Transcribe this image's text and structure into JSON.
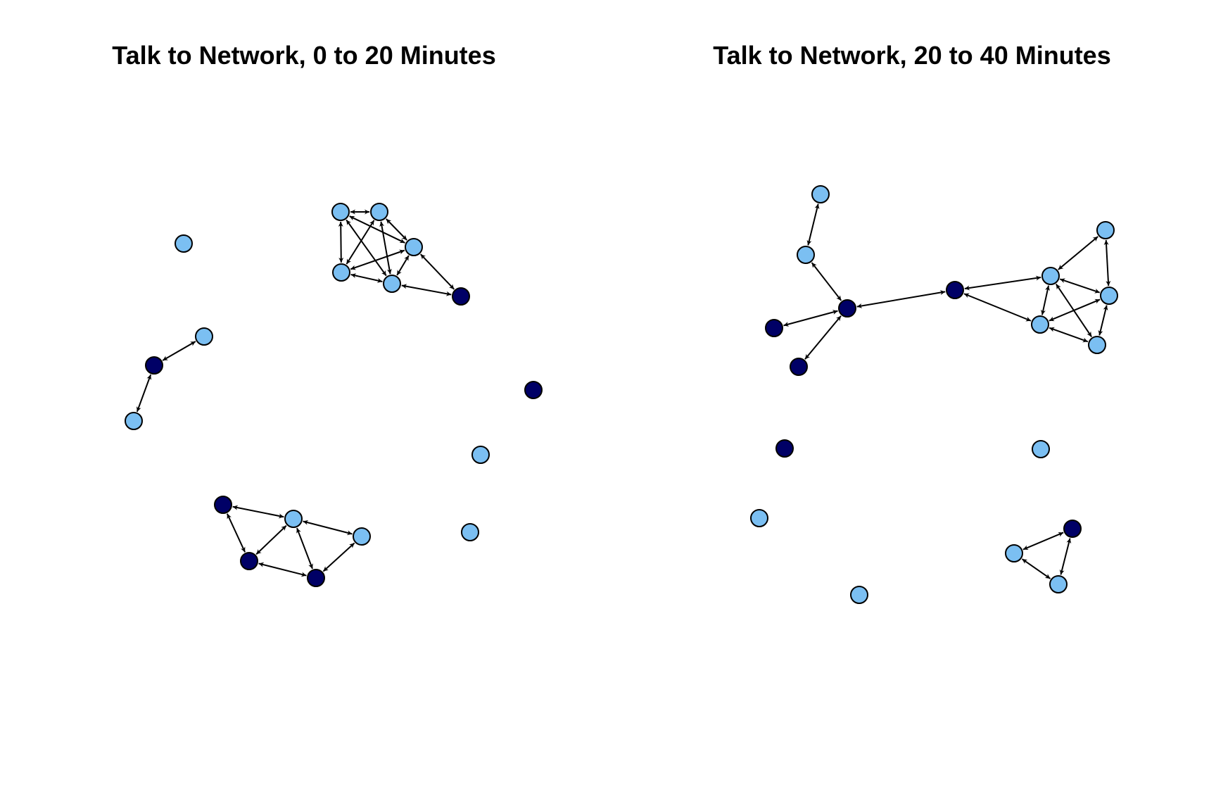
{
  "colors": {
    "light_node": "#7bbff2",
    "dark_node": "#000066",
    "edge": "#000000",
    "node_stroke": "#000000",
    "background": "#ffffff"
  },
  "panels": [
    {
      "title": "Talk to Network, 0 to 20 Minutes",
      "nodes": [
        {
          "id": "a1",
          "group": "light"
        },
        {
          "id": "a2",
          "group": "light"
        },
        {
          "id": "a3",
          "group": "light"
        },
        {
          "id": "a4",
          "group": "light"
        },
        {
          "id": "a5",
          "group": "light"
        },
        {
          "id": "a6",
          "group": "dark"
        },
        {
          "id": "b1",
          "group": "light"
        },
        {
          "id": "c1",
          "group": "light"
        },
        {
          "id": "c2",
          "group": "dark"
        },
        {
          "id": "c3",
          "group": "light"
        },
        {
          "id": "d1",
          "group": "dark"
        },
        {
          "id": "d2",
          "group": "light"
        },
        {
          "id": "d3",
          "group": "light"
        },
        {
          "id": "e1",
          "group": "dark"
        },
        {
          "id": "e2",
          "group": "light"
        },
        {
          "id": "e3",
          "group": "dark"
        },
        {
          "id": "e4",
          "group": "dark"
        },
        {
          "id": "e5",
          "group": "light"
        }
      ],
      "edges": [
        {
          "from": "a1",
          "to": "a2"
        },
        {
          "from": "a1",
          "to": "a3"
        },
        {
          "from": "a1",
          "to": "a4"
        },
        {
          "from": "a1",
          "to": "a5"
        },
        {
          "from": "a2",
          "to": "a3"
        },
        {
          "from": "a2",
          "to": "a4"
        },
        {
          "from": "a2",
          "to": "a5"
        },
        {
          "from": "a3",
          "to": "a4"
        },
        {
          "from": "a3",
          "to": "a5"
        },
        {
          "from": "a4",
          "to": "a5"
        },
        {
          "from": "a5",
          "to": "a6"
        },
        {
          "from": "a3",
          "to": "a6"
        },
        {
          "from": "c1",
          "to": "c2"
        },
        {
          "from": "c2",
          "to": "c3"
        },
        {
          "from": "e1",
          "to": "e2"
        },
        {
          "from": "e1",
          "to": "e3"
        },
        {
          "from": "e2",
          "to": "e3"
        },
        {
          "from": "e2",
          "to": "e4"
        },
        {
          "from": "e2",
          "to": "e5"
        },
        {
          "from": "e3",
          "to": "e4"
        },
        {
          "from": "e4",
          "to": "e5"
        }
      ]
    },
    {
      "title": "Talk to Network, 20 to 40 Minutes",
      "nodes": [
        {
          "id": "f1",
          "group": "light"
        },
        {
          "id": "f2",
          "group": "light"
        },
        {
          "id": "f3",
          "group": "dark"
        },
        {
          "id": "f4",
          "group": "dark"
        },
        {
          "id": "f5",
          "group": "dark"
        },
        {
          "id": "f6",
          "group": "dark"
        },
        {
          "id": "g1",
          "group": "light"
        },
        {
          "id": "g2",
          "group": "light"
        },
        {
          "id": "g3",
          "group": "light"
        },
        {
          "id": "g4",
          "group": "light"
        },
        {
          "id": "g5",
          "group": "light"
        },
        {
          "id": "h1",
          "group": "dark"
        },
        {
          "id": "i1",
          "group": "light"
        },
        {
          "id": "j1",
          "group": "light"
        },
        {
          "id": "k1",
          "group": "light"
        },
        {
          "id": "l1",
          "group": "dark"
        },
        {
          "id": "l2",
          "group": "light"
        },
        {
          "id": "l3",
          "group": "light"
        }
      ],
      "edges": [
        {
          "from": "f1",
          "to": "f2"
        },
        {
          "from": "f2",
          "to": "f3"
        },
        {
          "from": "f3",
          "to": "f4"
        },
        {
          "from": "f3",
          "to": "f5"
        },
        {
          "from": "f3",
          "to": "f6"
        },
        {
          "from": "f6",
          "to": "g2"
        },
        {
          "from": "f6",
          "to": "g4"
        },
        {
          "from": "g1",
          "to": "g2"
        },
        {
          "from": "g1",
          "to": "g3"
        },
        {
          "from": "g2",
          "to": "g3"
        },
        {
          "from": "g2",
          "to": "g4"
        },
        {
          "from": "g2",
          "to": "g5"
        },
        {
          "from": "g3",
          "to": "g4"
        },
        {
          "from": "g3",
          "to": "g5"
        },
        {
          "from": "g4",
          "to": "g5"
        },
        {
          "from": "l1",
          "to": "l2"
        },
        {
          "from": "l1",
          "to": "l3"
        },
        {
          "from": "l2",
          "to": "l3"
        }
      ]
    }
  ]
}
